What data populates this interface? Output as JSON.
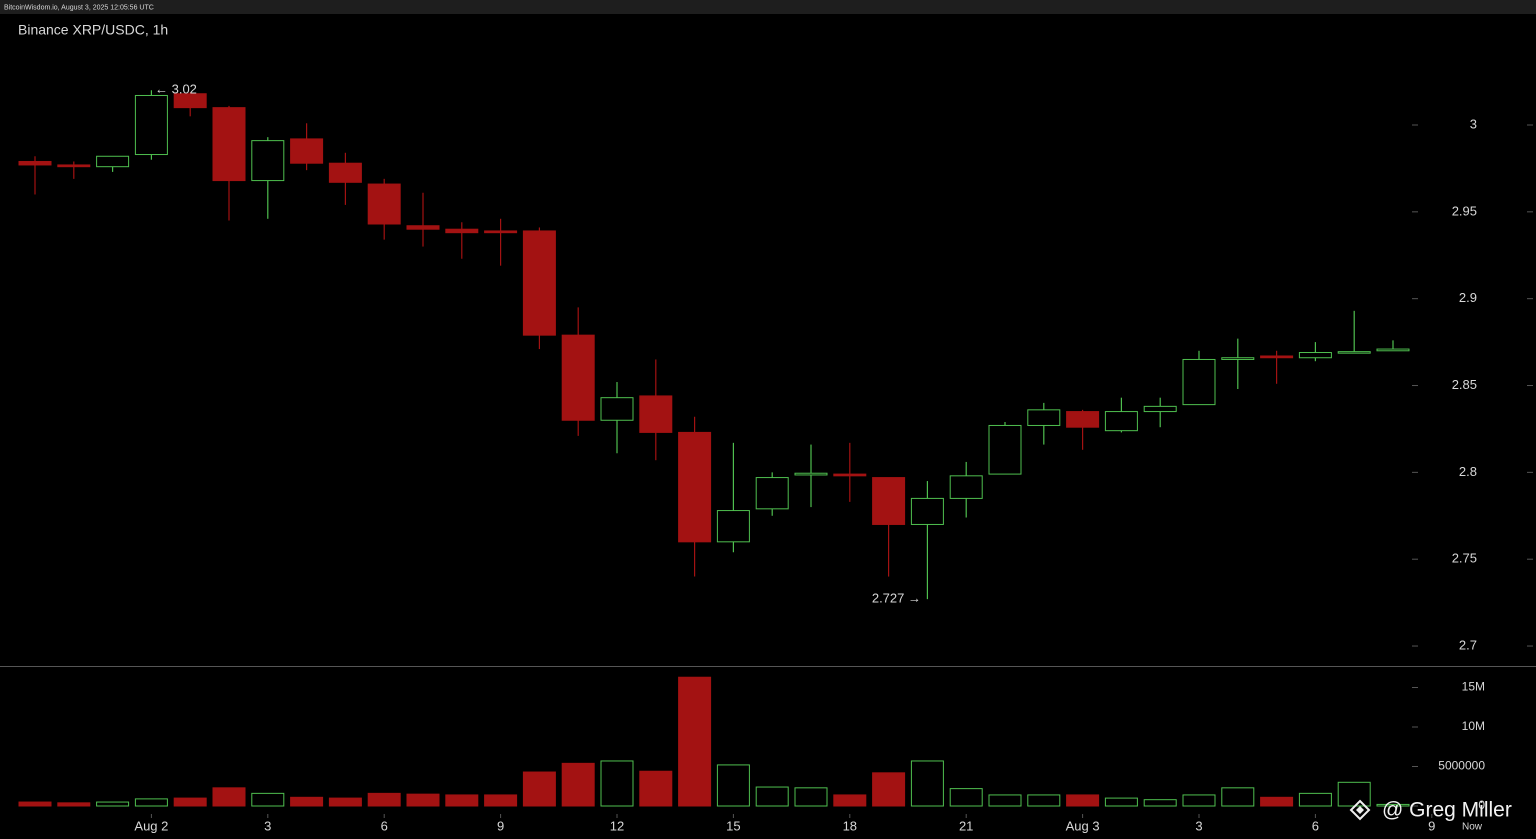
{
  "header": "BitcoinWisdom.io, August 3, 2025 12:05:56 UTC",
  "watermark": "@ Greg Miller",
  "chart_data": {
    "type": "candlestick",
    "title": "Binance XRP/USDC, 1h",
    "open": [
      2.979,
      2.977,
      2.976,
      2.983,
      3.018,
      3.01,
      2.968,
      2.992,
      2.978,
      2.966,
      2.942,
      2.94,
      2.939,
      2.939,
      2.879,
      2.83,
      2.844,
      2.823,
      2.76,
      2.779,
      2.7985,
      2.799,
      2.797,
      2.77,
      2.785,
      2.799,
      2.827,
      2.835,
      2.824,
      2.835,
      2.839,
      2.865,
      2.867,
      2.866,
      2.8688,
      2.87
    ],
    "high": [
      2.982,
      2.979,
      2.982,
      3.02,
      3.019,
      3.011,
      2.993,
      3.001,
      2.984,
      2.969,
      2.961,
      2.944,
      2.946,
      2.941,
      2.895,
      2.852,
      2.865,
      2.832,
      2.817,
      2.8,
      2.816,
      2.817,
      2.797,
      2.795,
      2.806,
      2.829,
      2.84,
      2.836,
      2.843,
      2.843,
      2.87,
      2.877,
      2.87,
      2.875,
      2.893,
      2.876
    ],
    "low": [
      2.96,
      2.969,
      2.973,
      2.98,
      3.005,
      2.945,
      2.946,
      2.974,
      2.954,
      2.934,
      2.93,
      2.923,
      2.919,
      2.871,
      2.821,
      2.811,
      2.807,
      2.74,
      2.754,
      2.775,
      2.78,
      2.783,
      2.74,
      2.727,
      2.774,
      2.799,
      2.816,
      2.813,
      2.823,
      2.826,
      2.839,
      2.848,
      2.851,
      2.864,
      2.869,
      2.87
    ],
    "close": [
      2.977,
      2.976,
      2.982,
      3.017,
      3.01,
      2.968,
      2.991,
      2.978,
      2.967,
      2.943,
      2.94,
      2.938,
      2.938,
      2.879,
      2.83,
      2.843,
      2.823,
      2.76,
      2.778,
      2.797,
      2.7995,
      2.798,
      2.77,
      2.785,
      2.798,
      2.827,
      2.836,
      2.826,
      2.835,
      2.838,
      2.865,
      2.866,
      2.866,
      2.869,
      2.8695,
      2.871
    ],
    "volume": [
      500000,
      400000,
      500000,
      900000,
      1000000,
      2300000,
      1600000,
      1100000,
      1000000,
      1600000,
      1500000,
      1400000,
      1400000,
      4300000,
      5400000,
      5700000,
      4400000,
      16300000,
      5200000,
      2400000,
      2300000,
      1400000,
      4200000,
      5700000,
      2200000,
      1400000,
      1400000,
      1400000,
      1000000,
      800000,
      1400000,
      2300000,
      1100000,
      1600000,
      3000000,
      200000
    ],
    "up_color": "#4fbf4f",
    "down_color": "#a31212",
    "ylim": [
      2.69,
      3.06
    ],
    "yticks": [
      2.7,
      2.75,
      2.8,
      2.85,
      2.9,
      2.95,
      3
    ],
    "volume_ylim": [
      0,
      17500000
    ],
    "volume_yticks": [
      0,
      5000000,
      {
        "value": 10000000,
        "label": "10M"
      },
      {
        "value": 15000000,
        "label": "15M"
      }
    ],
    "xticks": [
      {
        "value": 3,
        "label": "Aug 2"
      },
      {
        "value": 6,
        "label": "3"
      },
      {
        "value": 9,
        "label": "6"
      },
      {
        "value": 12,
        "label": "9"
      },
      {
        "value": 15,
        "label": "12"
      },
      {
        "value": 18,
        "label": "15"
      },
      {
        "value": 21,
        "label": "18"
      },
      {
        "value": 24,
        "label": "21"
      },
      {
        "value": 27,
        "label": "Aug 3"
      },
      {
        "value": 30,
        "label": "3"
      },
      {
        "value": 33,
        "label": "6"
      },
      {
        "value": 36,
        "label": "9"
      }
    ],
    "now_label": "Now",
    "annotations": [
      "← 3.02",
      "2.727 →"
    ]
  }
}
